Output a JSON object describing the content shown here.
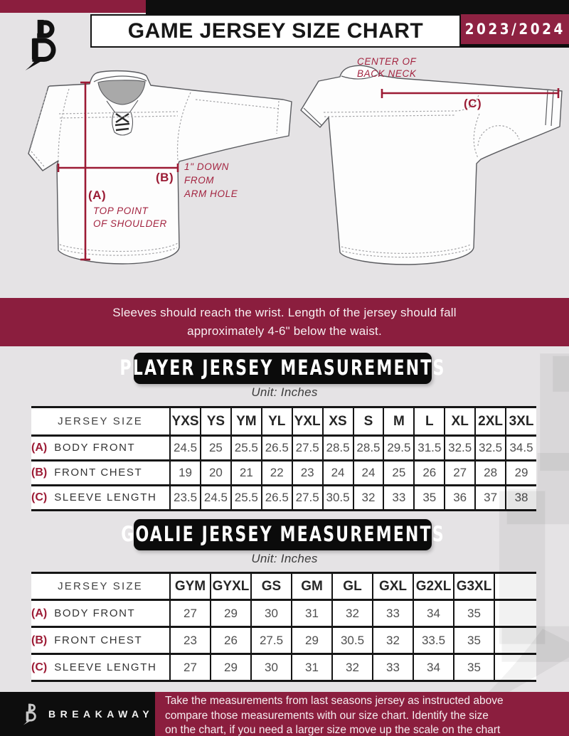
{
  "header": {
    "title": "GAME JERSEY SIZE CHART",
    "season": "2023/2024"
  },
  "brand": {
    "name": "BREAKAWAY"
  },
  "diagram": {
    "front": {
      "a_label": "(A)",
      "a_caption": [
        "TOP POINT",
        "OF SHOULDER"
      ],
      "b_label": "(B)",
      "b_caption": [
        "1\" DOWN",
        "FROM",
        "ARM HOLE"
      ]
    },
    "back": {
      "c_label": "(C)",
      "c_caption": [
        "CENTER OF",
        "BACK NECK"
      ]
    }
  },
  "notice_lines": [
    "Sleeves should reach the wrist. Length of the jersey should fall",
    "approximately 4-6\" below the waist."
  ],
  "player_table": {
    "title": "PLAYER JERSEY MEASUREMENTS",
    "unit": "Unit: Inches",
    "corner_label": "JERSEY SIZE",
    "sizes": [
      "YXS",
      "YS",
      "YM",
      "YL",
      "YXL",
      "XS",
      "S",
      "M",
      "L",
      "XL",
      "2XL",
      "3XL"
    ],
    "rows": [
      {
        "key": "(A)",
        "label": "BODY FRONT",
        "values": [
          "24.5",
          "25",
          "25.5",
          "26.5",
          "27.5",
          "28.5",
          "28.5",
          "29.5",
          "31.5",
          "32.5",
          "32.5",
          "34.5"
        ]
      },
      {
        "key": "(B)",
        "label": "FRONT CHEST",
        "values": [
          "19",
          "20",
          "21",
          "22",
          "23",
          "24",
          "24",
          "25",
          "26",
          "27",
          "28",
          "29"
        ]
      },
      {
        "key": "(C)",
        "label": "SLEEVE LENGTH",
        "values": [
          "23.5",
          "24.5",
          "25.5",
          "26.5",
          "27.5",
          "30.5",
          "32",
          "33",
          "35",
          "36",
          "37",
          "38"
        ]
      }
    ]
  },
  "goalie_table": {
    "title": "GOALIE JERSEY MEASUREMENTS",
    "unit": "Unit: Inches",
    "corner_label": "JERSEY SIZE",
    "sizes": [
      "GYM",
      "GYXL",
      "GS",
      "GM",
      "GL",
      "GXL",
      "G2XL",
      "G3XL"
    ],
    "blank_trailing_column": true,
    "rows": [
      {
        "key": "(A)",
        "label": "BODY FRONT",
        "values": [
          "27",
          "29",
          "30",
          "31",
          "32",
          "33",
          "34",
          "35"
        ]
      },
      {
        "key": "(B)",
        "label": "FRONT CHEST",
        "values": [
          "23",
          "26",
          "27.5",
          "29",
          "30.5",
          "32",
          "33.5",
          "35"
        ]
      },
      {
        "key": "(C)",
        "label": "SLEEVE LENGTH",
        "values": [
          "27",
          "29",
          "30",
          "31",
          "32",
          "33",
          "34",
          "35"
        ]
      }
    ]
  },
  "footer": {
    "lines": [
      "Take the measurements from last seasons jersey as instructed above",
      "compare those measurements  with our size chart. Identify the size",
      "on the chart, if you need a larger size move up the scale on the chart"
    ]
  },
  "colors": {
    "maroon": "#8b1e3e",
    "annotation": "#9c1b35",
    "black": "#0e0e0e"
  }
}
